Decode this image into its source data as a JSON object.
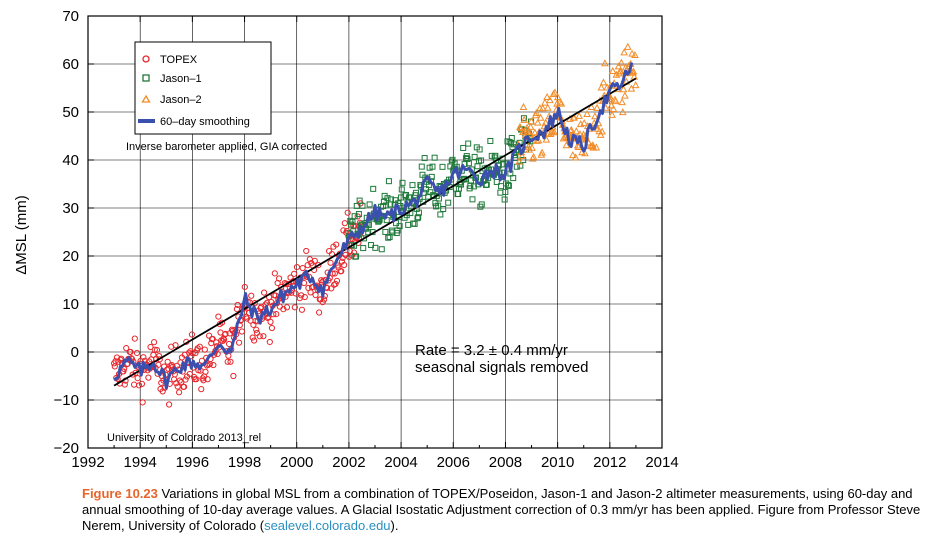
{
  "chart_data": {
    "type": "scatter",
    "title": "",
    "xlabel": "",
    "ylabel": "ΔMSL (mm)",
    "xlim": [
      1992,
      2014
    ],
    "ylim": [
      -20,
      70
    ],
    "x_ticks": [
      "1992",
      "1994",
      "1996",
      "1998",
      "2000",
      "2002",
      "2004",
      "2006",
      "2008",
      "2010",
      "2012",
      "2014"
    ],
    "y_ticks": [
      "−20",
      "−10",
      "0",
      "10",
      "20",
      "30",
      "40",
      "50",
      "60",
      "70"
    ],
    "grid": true,
    "legend_position": "top-left",
    "series": [
      {
        "name": "TOPEX",
        "marker": "circle",
        "color": "#e8262b",
        "x_range": [
          1993.0,
          2002.5
        ],
        "trend": "linear",
        "scatter_mm": 4.5
      },
      {
        "name": "Jason–1",
        "marker": "square",
        "color": "#1f7a3a",
        "x_range": [
          2002.0,
          2009.0
        ],
        "trend": "linear",
        "scatter_mm": 5.0
      },
      {
        "name": "Jason–2",
        "marker": "triangle",
        "color": "#f28c28",
        "x_range": [
          2008.5,
          2013.0
        ],
        "trend": "linear",
        "scatter_mm": 5.5
      },
      {
        "name": "60–day smoothing",
        "marker": "line",
        "color": "#3b4fae",
        "x": [
          1993.0,
          1993.5,
          1994.0,
          1994.5,
          1995.0,
          1995.5,
          1996.0,
          1996.5,
          1997.0,
          1997.5,
          1998.0,
          1998.5,
          1999.0,
          1999.5,
          2000.0,
          2000.5,
          2001.0,
          2001.5,
          2002.0,
          2002.5,
          2003.0,
          2003.5,
          2004.0,
          2004.5,
          2005.0,
          2005.5,
          2006.0,
          2006.5,
          2007.0,
          2007.5,
          2008.0,
          2008.5,
          2009.0,
          2009.5,
          2010.0,
          2010.5,
          2011.0,
          2011.5,
          2012.0,
          2012.5,
          2012.9
        ],
        "y": [
          -5,
          -2,
          -4,
          -2,
          -6,
          -3,
          -2,
          -3,
          2,
          0,
          11,
          7,
          9,
          12,
          14,
          16,
          13,
          19,
          23,
          26,
          29,
          28,
          30,
          31,
          35,
          33,
          37,
          38,
          36,
          38,
          37,
          42,
          45,
          46,
          50,
          44,
          43,
          49,
          54,
          56,
          61
        ]
      },
      {
        "name": "trend",
        "marker": "fit",
        "color": "#000000",
        "x": [
          1993.0,
          2013.0
        ],
        "y": [
          -7,
          57
        ]
      }
    ],
    "legend": [
      "TOPEX",
      "Jason–1",
      "Jason–2",
      "60–day smoothing"
    ],
    "annotations": {
      "corrections": "Inverse barometer applied, GIA corrected",
      "rate": "Rate = 3.2 ± 0.4 mm/yr",
      "seasonal": "seasonal signals removed",
      "source": "University of Colorado 2013_rel"
    }
  },
  "caption": {
    "figure_number": "Figure 10.23",
    "text": " Variations in global MSL from a combination of TOPEX/Poseidon, Jason-1 and Jason-2 altimeter measurements, using 60-day and annual smoothing of 10-day average values. A Glacial Isostatic Adjustment correction of 0.3 mm/yr has been applied. Figure from Professor Steve Nerem, University of Colorado (",
    "link": "sealevel.colorado.edu",
    "end": ")."
  }
}
